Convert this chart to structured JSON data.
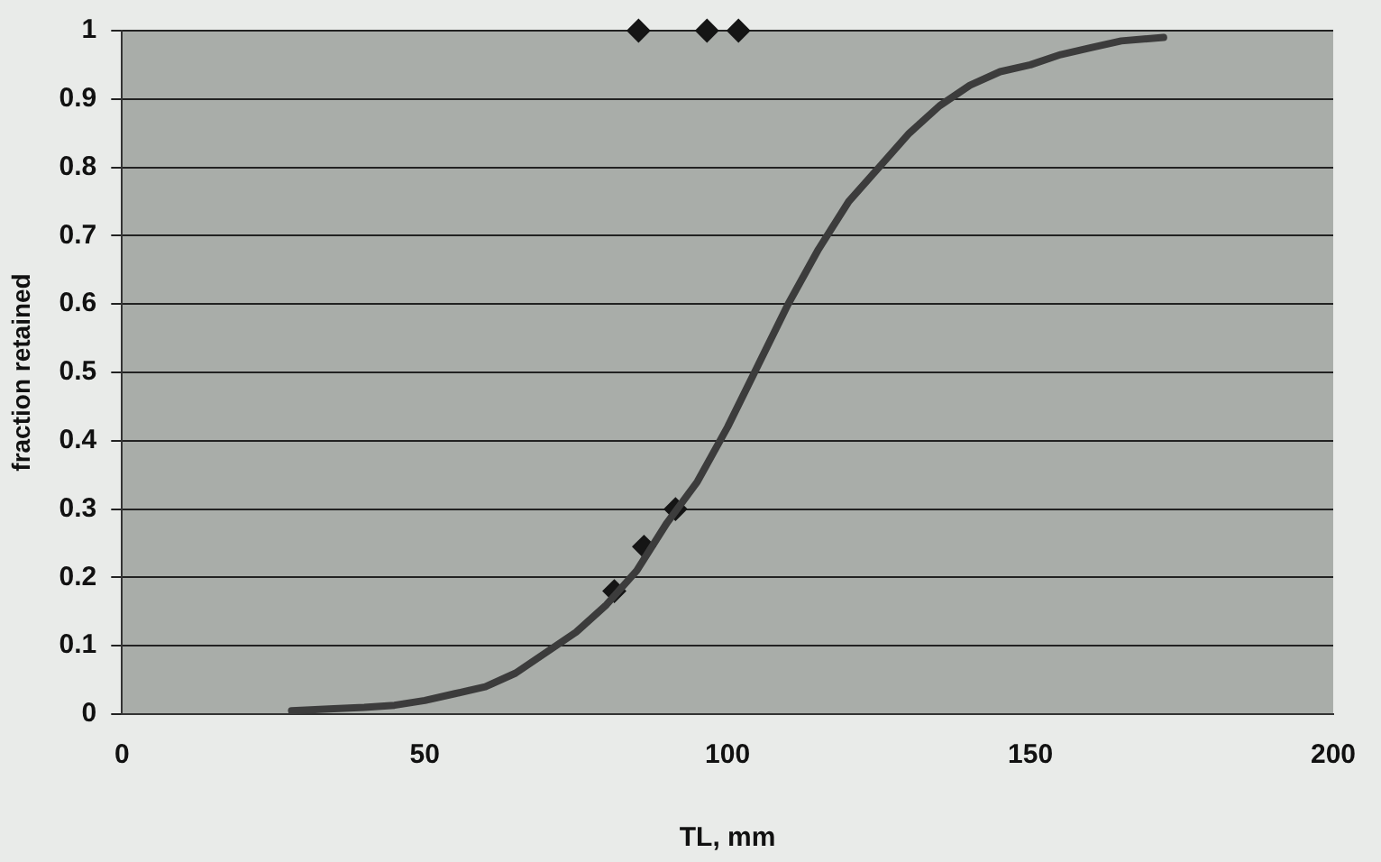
{
  "chart_data": {
    "type": "line",
    "xlabel": "TL, mm",
    "ylabel": "fraction retained",
    "xlim": [
      0,
      200
    ],
    "xticks": [
      0,
      50,
      100,
      150,
      200
    ],
    "ylim": [
      0,
      1
    ],
    "yticks": [
      0,
      0.1,
      0.2,
      0.3,
      0.4,
      0.5,
      0.6,
      0.7,
      0.8,
      0.9,
      1
    ],
    "grid": "y",
    "legend": false,
    "series": [
      {
        "color": "#3c3c3c",
        "marker": "none",
        "x": [
          28,
          35,
          40,
          45,
          50,
          55,
          60,
          65,
          70,
          75,
          80,
          85,
          90,
          95,
          100,
          105,
          110,
          115,
          120,
          125,
          130,
          135,
          140,
          145,
          150,
          155,
          160,
          165,
          172
        ],
        "values": [
          0.005,
          0.008,
          0.01,
          0.013,
          0.02,
          0.03,
          0.04,
          0.06,
          0.09,
          0.12,
          0.16,
          0.21,
          0.28,
          0.34,
          0.42,
          0.51,
          0.6,
          0.68,
          0.75,
          0.8,
          0.85,
          0.89,
          0.92,
          0.94,
          0.95,
          0.965,
          0.975,
          0.985,
          0.99
        ]
      },
      {
        "type": "scatter",
        "color": "#151515",
        "marker": "diamond",
        "x": [
          85.3,
          96.6,
          101.8,
          81.3,
          86.2,
          91.4
        ],
        "values": [
          1,
          1,
          1,
          0.18,
          0.245,
          0.3
        ]
      }
    ]
  }
}
